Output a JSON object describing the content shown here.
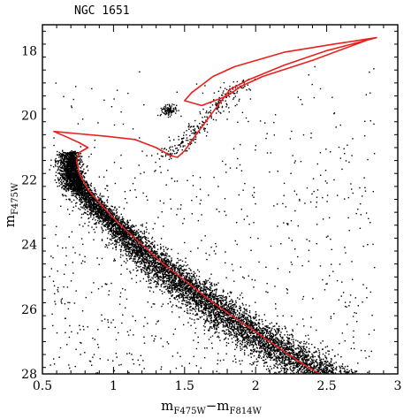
{
  "chart_data": {
    "type": "scatter",
    "title": "NGC 1651",
    "xlabel": {
      "main": "m",
      "sub1": "F475W",
      "mid": "−m",
      "sub2": "F814W"
    },
    "ylabel": {
      "main": "m",
      "sub": "F475W"
    },
    "xlim": [
      0.5,
      3.0
    ],
    "ylim": [
      28,
      17.2
    ],
    "y_inverted": true,
    "x_ticks": [
      {
        "value": 0.5,
        "label": "0.5"
      },
      {
        "value": 1.0,
        "label": "1"
      },
      {
        "value": 1.5,
        "label": "1.5"
      },
      {
        "value": 2.0,
        "label": "2"
      },
      {
        "value": 2.5,
        "label": "2.5"
      },
      {
        "value": 3.0,
        "label": "3"
      }
    ],
    "y_ticks": [
      {
        "value": 18,
        "label": "18"
      },
      {
        "value": 20,
        "label": "20"
      },
      {
        "value": 22,
        "label": "22"
      },
      {
        "value": 24,
        "label": "24"
      },
      {
        "value": 26,
        "label": "26"
      },
      {
        "value": 28,
        "label": "28"
      }
    ],
    "grid": false,
    "colors": {
      "points": "#000000",
      "isochrone": "#e8201e"
    },
    "stars": {
      "ms_ridge": [
        [
          0.72,
          21.0
        ],
        [
          0.7,
          21.5
        ],
        [
          0.72,
          21.9
        ],
        [
          0.78,
          22.3
        ],
        [
          0.86,
          22.7
        ],
        [
          0.95,
          23.1
        ],
        [
          1.05,
          23.5
        ],
        [
          1.14,
          23.9
        ],
        [
          1.24,
          24.3
        ],
        [
          1.35,
          24.7
        ],
        [
          1.46,
          25.1
        ],
        [
          1.58,
          25.5
        ],
        [
          1.7,
          25.9
        ],
        [
          1.83,
          26.3
        ],
        [
          1.97,
          26.7
        ],
        [
          2.12,
          27.1
        ],
        [
          2.27,
          27.5
        ],
        [
          2.42,
          27.9
        ],
        [
          2.47,
          28.0
        ]
      ],
      "ms_count": 7000,
      "field_count": 800,
      "turnoff_count": 600,
      "red_clump": {
        "center": [
          1.4,
          19.85
        ],
        "count": 90
      },
      "rgb_count": 260
    },
    "isochrone": [
      [
        2.45,
        28.0
      ],
      [
        2.3,
        27.6
      ],
      [
        2.1,
        27.0
      ],
      [
        1.9,
        26.4
      ],
      [
        1.7,
        25.8
      ],
      [
        1.5,
        25.1
      ],
      [
        1.35,
        24.6
      ],
      [
        1.2,
        24.0
      ],
      [
        1.05,
        23.4
      ],
      [
        0.92,
        22.8
      ],
      [
        0.82,
        22.3
      ],
      [
        0.76,
        21.8
      ],
      [
        0.74,
        21.4
      ],
      [
        0.76,
        21.15
      ],
      [
        0.82,
        21.0
      ],
      [
        0.76,
        20.85
      ],
      [
        0.66,
        20.65
      ],
      [
        0.58,
        20.5
      ],
      [
        0.7,
        20.55
      ],
      [
        0.95,
        20.65
      ],
      [
        1.15,
        20.75
      ],
      [
        1.3,
        21.0
      ],
      [
        1.4,
        21.25
      ],
      [
        1.45,
        21.3
      ],
      [
        1.5,
        21.1
      ],
      [
        1.58,
        20.6
      ],
      [
        1.7,
        19.9
      ],
      [
        1.82,
        19.2
      ],
      [
        1.95,
        18.9
      ],
      [
        2.2,
        18.45
      ],
      [
        2.5,
        18.0
      ],
      [
        2.85,
        17.6
      ],
      [
        2.55,
        17.8
      ],
      [
        2.2,
        18.05
      ],
      [
        1.85,
        18.5
      ],
      [
        1.7,
        18.8
      ],
      [
        1.55,
        19.3
      ],
      [
        1.5,
        19.55
      ],
      [
        1.62,
        19.7
      ],
      [
        1.8,
        19.4
      ],
      [
        1.9,
        19.1
      ],
      [
        2.05,
        18.8
      ],
      [
        2.4,
        18.3
      ],
      [
        2.8,
        17.65
      ]
    ]
  }
}
